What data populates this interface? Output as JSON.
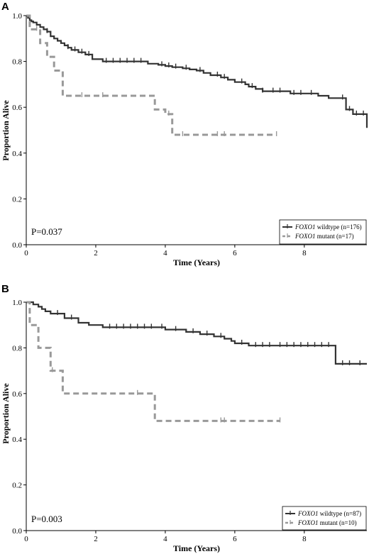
{
  "chart_data": [
    {
      "type": "line",
      "panel_label": "A",
      "xlabel": "Time (Years)",
      "ylabel": "Proportion Alive",
      "xlim": [
        0,
        9.8
      ],
      "ylim": [
        0,
        1.0
      ],
      "xticks": [
        0,
        2,
        4,
        6,
        8
      ],
      "yticks": [
        0.0,
        0.2,
        0.4,
        0.6,
        0.8,
        1.0
      ],
      "annotation": "P=0.037",
      "legend_position": "bottom-right",
      "series": [
        {
          "name_italic": "FOXO1",
          "name": " wildtype (n=176)",
          "style": "solid",
          "color": "#333333",
          "x": [
            0,
            0.05,
            0.1,
            0.15,
            0.2,
            0.3,
            0.4,
            0.5,
            0.6,
            0.7,
            0.8,
            0.9,
            1.0,
            1.1,
            1.2,
            1.3,
            1.5,
            1.7,
            1.9,
            2.2,
            3.5,
            3.8,
            4.0,
            4.2,
            4.5,
            4.7,
            4.9,
            5.1,
            5.3,
            5.6,
            5.8,
            6.0,
            6.3,
            6.4,
            6.6,
            6.8,
            7.0,
            7.2,
            7.5,
            7.6,
            8.4,
            8.7,
            9.2,
            9.4,
            9.8
          ],
          "y": [
            1.0,
            0.99,
            0.98,
            0.975,
            0.97,
            0.96,
            0.95,
            0.94,
            0.93,
            0.91,
            0.9,
            0.89,
            0.88,
            0.87,
            0.86,
            0.85,
            0.84,
            0.83,
            0.81,
            0.8,
            0.79,
            0.785,
            0.78,
            0.775,
            0.77,
            0.765,
            0.76,
            0.75,
            0.74,
            0.73,
            0.72,
            0.71,
            0.7,
            0.69,
            0.68,
            0.67,
            0.67,
            0.67,
            0.67,
            0.66,
            0.65,
            0.64,
            0.59,
            0.57,
            0.51
          ],
          "censor_x": [
            0.6,
            1.2,
            1.4,
            1.6,
            1.8,
            2.3,
            2.5,
            2.7,
            2.9,
            3.1,
            3.3,
            3.9,
            4.1,
            4.3,
            4.6,
            5.0,
            5.5,
            5.7,
            6.2,
            6.5,
            6.8,
            7.1,
            7.3,
            7.7,
            7.9,
            8.2,
            9.1,
            9.3,
            9.5,
            9.7
          ]
        },
        {
          "name_italic": "FOXO1",
          "name": " mutant (n=17)",
          "style": "dashed",
          "color": "#999999",
          "x": [
            0,
            0.1,
            0.4,
            0.6,
            0.8,
            1.05,
            3.7,
            4.0,
            4.2,
            7.2
          ],
          "y": [
            1.0,
            0.94,
            0.88,
            0.82,
            0.76,
            0.65,
            0.59,
            0.57,
            0.48,
            0.48
          ],
          "censor_x": [
            0.3,
            1.6,
            2.2,
            4.1,
            4.5,
            5.5,
            5.7,
            7.2
          ]
        }
      ]
    },
    {
      "type": "line",
      "panel_label": "B",
      "xlabel": "Time (Years)",
      "ylabel": "Proportion Alive",
      "xlim": [
        0,
        9.8
      ],
      "ylim": [
        0,
        1.0
      ],
      "xticks": [
        0,
        2,
        4,
        6,
        8
      ],
      "yticks": [
        0.0,
        0.2,
        0.4,
        0.6,
        0.8,
        1.0
      ],
      "annotation": "P=0.003",
      "legend_position": "bottom-right",
      "series": [
        {
          "name_italic": "FOXO1",
          "name": " wildtype (n=87)",
          "style": "solid",
          "color": "#333333",
          "x": [
            0,
            0.2,
            0.35,
            0.45,
            0.55,
            0.7,
            1.1,
            1.5,
            1.8,
            2.2,
            4.0,
            4.6,
            5.0,
            5.4,
            5.7,
            5.9,
            6.0,
            6.4,
            7.2,
            8.9,
            9.8
          ],
          "y": [
            1.0,
            0.99,
            0.98,
            0.97,
            0.96,
            0.95,
            0.93,
            0.91,
            0.9,
            0.89,
            0.88,
            0.87,
            0.86,
            0.85,
            0.84,
            0.83,
            0.82,
            0.81,
            0.81,
            0.73,
            0.73
          ],
          "censor_x": [
            0.9,
            1.3,
            2.4,
            2.6,
            2.8,
            3.0,
            3.2,
            3.4,
            3.6,
            3.9,
            4.3,
            4.8,
            5.2,
            5.6,
            6.2,
            6.6,
            6.8,
            7.0,
            7.3,
            7.5,
            7.7,
            7.9,
            8.1,
            8.3,
            8.5,
            8.7,
            9.1,
            9.3,
            9.6
          ]
        },
        {
          "name_italic": "FOXO1",
          "name": " mutant (n=10)",
          "style": "dashed",
          "color": "#999999",
          "x": [
            0,
            0.1,
            0.35,
            0.7,
            1.05,
            3.7,
            7.3
          ],
          "y": [
            1.0,
            0.9,
            0.8,
            0.7,
            0.6,
            0.48,
            0.48
          ],
          "censor_x": [
            0.75,
            3.2,
            5.6,
            5.7,
            7.3
          ]
        }
      ]
    }
  ]
}
